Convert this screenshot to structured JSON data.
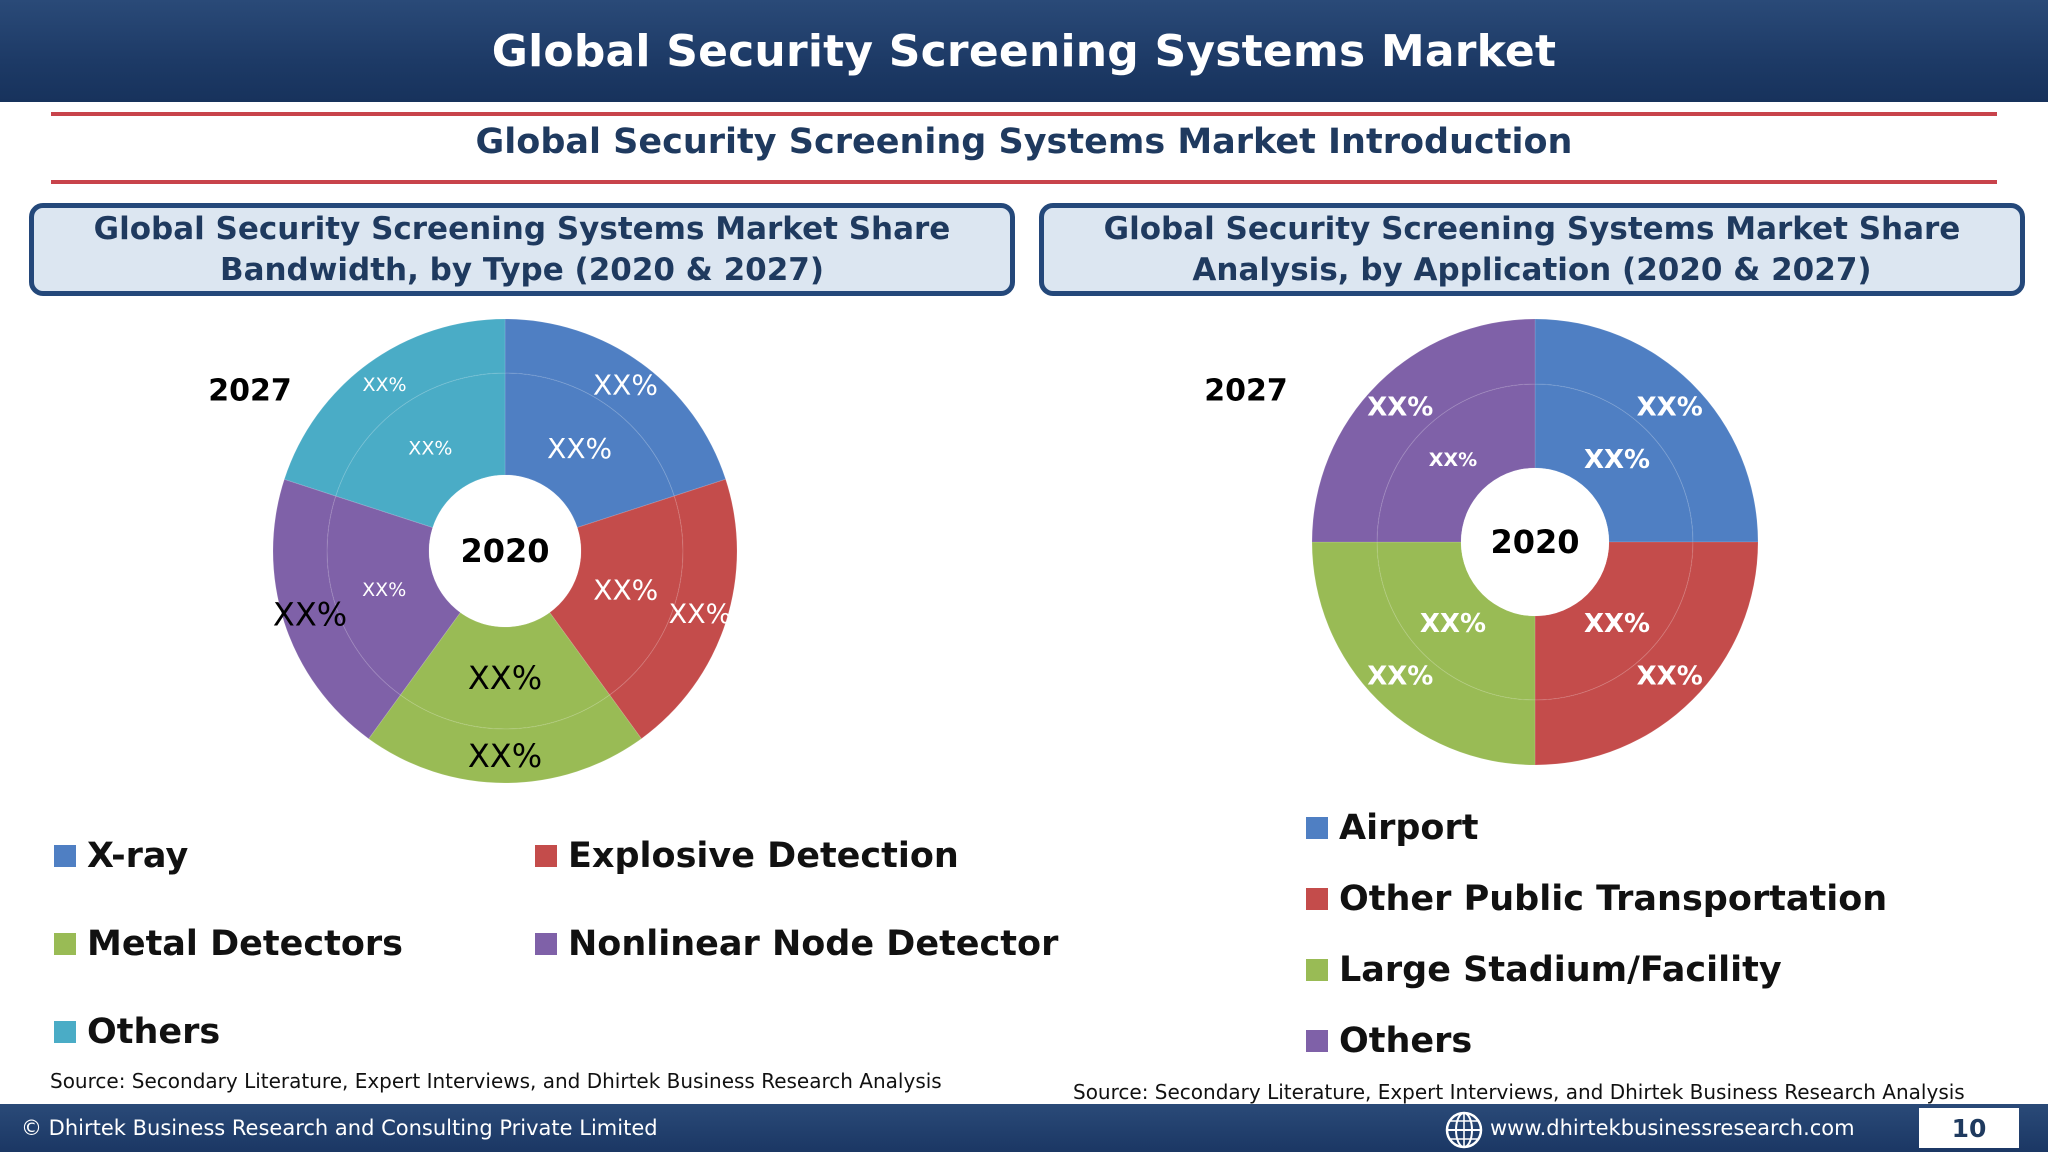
{
  "header": {
    "title": "Global Security Screening Systems Market"
  },
  "subtitle": "Global Security Screening Systems Market Introduction",
  "panels": {
    "left_title": "Global Security Screening Systems Market Share Bandwidth, by Type (2020 & 2027)",
    "right_title": "Global Security Screening Systems Market Share Analysis, by Application (2020 & 2027)"
  },
  "colors": {
    "blue": "#4f7fc3",
    "red": "#c44c4b",
    "green": "#99bb55",
    "purple": "#7f61a8",
    "teal": "#4aacc6"
  },
  "chart_data": [
    {
      "type": "donut",
      "outer_year_label": "2027",
      "center_label": "2020",
      "categories": [
        "X-ray",
        "Explosive Detection",
        "Metal Detectors",
        "Nonlinear Node Detector",
        "Others"
      ],
      "series": [
        {
          "year": "2020",
          "ring": "inner",
          "values": [
            20,
            20,
            20,
            20,
            20
          ],
          "labels": [
            "XX%",
            "XX%",
            "XX%",
            "XX%",
            "XX%"
          ]
        },
        {
          "year": "2027",
          "ring": "outer",
          "values": [
            20,
            20,
            20,
            20,
            20
          ],
          "labels": [
            "XX%",
            "XX%",
            "XX%",
            "XX%",
            "XX%"
          ]
        }
      ],
      "colors": [
        "#4f7fc3",
        "#c44c4b",
        "#99bb55",
        "#7f61a8",
        "#4aacc6"
      ],
      "legend": [
        "X-ray",
        "Explosive Detection",
        "Metal Detectors",
        "Nonlinear Node Detector",
        "Others"
      ],
      "source": "Source: Secondary Literature, Expert Interviews, and Dhirtek Business Research Analysis"
    },
    {
      "type": "donut",
      "outer_year_label": "2027",
      "center_label": "2020",
      "categories": [
        "Airport",
        "Other Public Transportation",
        "Large Stadium/Facility",
        "Others"
      ],
      "series": [
        {
          "year": "2020",
          "ring": "inner",
          "values": [
            25,
            25,
            25,
            25
          ],
          "labels": [
            "XX%",
            "XX%",
            "XX%",
            "XX%"
          ]
        },
        {
          "year": "2027",
          "ring": "outer",
          "values": [
            25,
            25,
            25,
            25
          ],
          "labels": [
            "XX%",
            "XX%",
            "XX%",
            "XX%"
          ]
        }
      ],
      "colors": [
        "#4f7fc3",
        "#c44c4b",
        "#99bb55",
        "#7f61a8"
      ],
      "legend": [
        "Airport",
        "Other Public Transportation",
        "Large Stadium/Facility",
        "Others"
      ],
      "source": "Source: Secondary Literature, Expert Interviews, and Dhirtek Business Research Analysis"
    }
  ],
  "footer": {
    "copyright": "© Dhirtek Business Research and Consulting Private Limited",
    "website": "www.dhirtekbusinessresearch.com",
    "page_number": "10"
  },
  "icons": {
    "footer_globe": "globe-icon"
  }
}
